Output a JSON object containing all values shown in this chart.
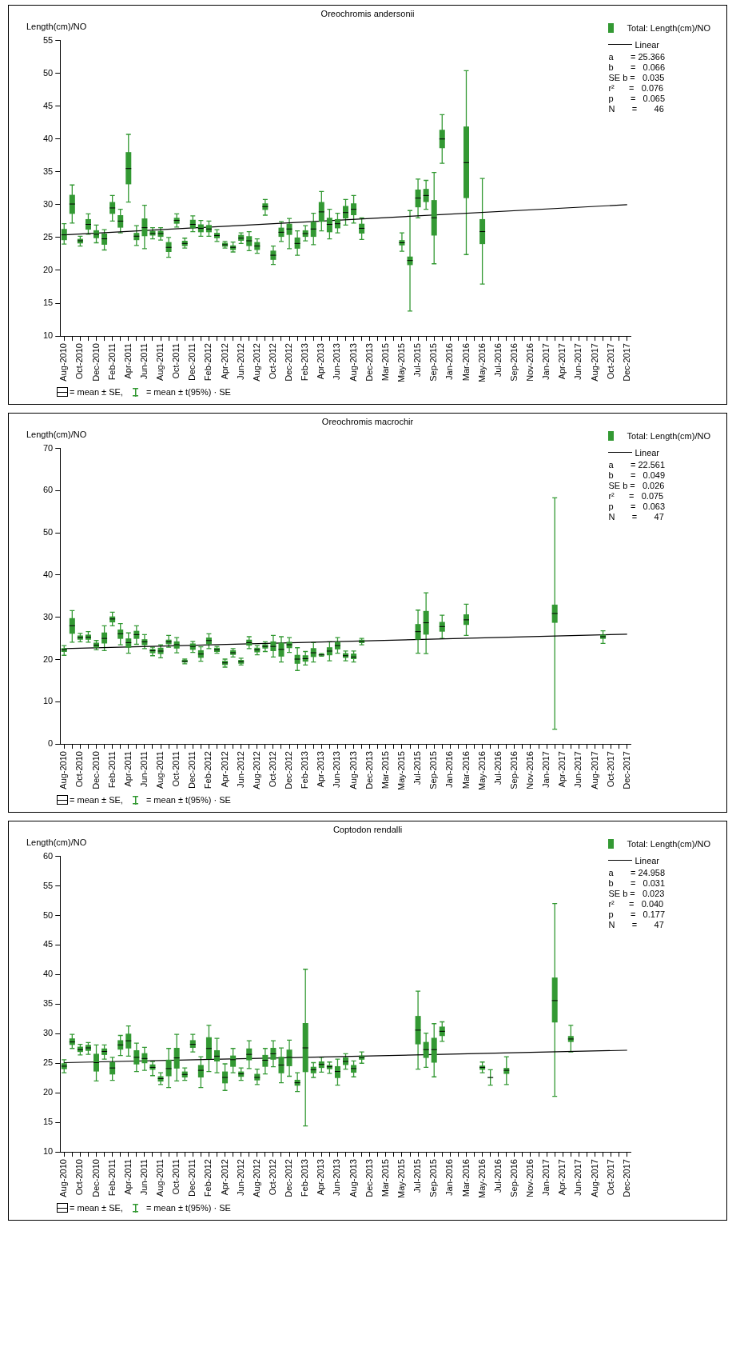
{
  "chart_data": [
    {
      "type": "box",
      "title": "Oreochromis andersonii",
      "ylabel": "Length(cm)/NO",
      "legend": "top right",
      "categories": [
        "Aug-2010",
        null,
        "Oct-2010",
        null,
        "Dec-2010",
        null,
        "Feb-2011",
        null,
        "Apr-2011",
        null,
        "Jun-2011",
        null,
        "Aug-2011",
        null,
        "Oct-2011",
        null,
        "Dec-2011",
        null,
        "Feb-2012",
        null,
        "Apr-2012",
        null,
        "Jun-2012",
        null,
        "Aug-2012",
        null,
        "Oct-2012",
        null,
        "Dec-2012",
        null,
        "Feb-2013",
        null,
        "Apr-2013",
        null,
        "Jun-2013",
        null,
        "Aug-2013",
        null,
        "Dec-2013",
        null,
        "Mar-2015",
        null,
        "May-2015",
        null,
        "Jul-2015",
        null,
        "Sep-2015",
        null,
        "Jan-2016",
        null,
        "Mar-2016",
        null,
        "May-2016",
        null,
        "Jul-2016",
        null,
        "Sep-2016",
        null,
        "Nov-2016",
        null,
        "Jan-2017",
        null,
        "Apr-2017",
        null,
        "Jun-2017",
        null,
        "Aug-2017",
        null,
        "Oct-2017",
        null,
        "Dec-2017"
      ],
      "ylim": [
        10,
        55
      ],
      "yticks": [
        10,
        15,
        20,
        25,
        30,
        35,
        40,
        45,
        50,
        55
      ],
      "series": [
        {
          "type": "box",
          "name": "Total: Length(cm)/NO",
          "color": "#339933",
          "boxes": [
            {
              "low": 24.0,
              "q1": 24.6,
              "median": 25.4,
              "q3": 26.3,
              "high": 27.1
            },
            {
              "low": 27.2,
              "q1": 28.6,
              "median": 30.1,
              "q3": 31.5,
              "high": 33.0
            },
            {
              "low": 23.7,
              "q1": 24.1,
              "median": 24.5,
              "q3": 24.8,
              "high": 25.2
            },
            {
              "low": 25.5,
              "q1": 26.2,
              "median": 27.0,
              "q3": 27.8,
              "high": 28.6
            },
            {
              "low": 24.2,
              "q1": 24.9,
              "median": 25.5,
              "q3": 26.1,
              "high": 26.9
            },
            {
              "low": 23.1,
              "q1": 23.9,
              "median": 24.8,
              "q3": 25.6,
              "high": 26.2
            },
            {
              "low": 27.5,
              "q1": 28.6,
              "median": 29.5,
              "q3": 30.4,
              "high": 31.4
            },
            {
              "low": 25.7,
              "q1": 26.5,
              "median": 27.5,
              "q3": 28.4,
              "high": 29.3
            },
            {
              "low": 30.4,
              "q1": 33.1,
              "median": 35.5,
              "q3": 38.0,
              "high": 40.7
            },
            {
              "low": 23.8,
              "q1": 24.6,
              "median": 25.2,
              "q3": 25.7,
              "high": 26.8
            },
            {
              "low": 23.3,
              "q1": 25.2,
              "median": 26.5,
              "q3": 27.9,
              "high": 29.9
            },
            {
              "low": 24.8,
              "q1": 25.3,
              "median": 25.6,
              "q3": 26.0,
              "high": 26.5
            },
            {
              "low": 24.6,
              "q1": 25.1,
              "median": 25.6,
              "q3": 26.0,
              "high": 26.5
            },
            {
              "low": 22.0,
              "q1": 22.8,
              "median": 23.5,
              "q3": 24.3,
              "high": 25.0
            },
            {
              "low": 26.6,
              "q1": 27.1,
              "median": 27.6,
              "q3": 28.0,
              "high": 28.6
            },
            {
              "low": 23.4,
              "q1": 23.7,
              "median": 24.1,
              "q3": 24.5,
              "high": 24.9
            },
            {
              "low": 25.9,
              "q1": 26.4,
              "median": 27.0,
              "q3": 27.7,
              "high": 28.3
            },
            {
              "low": 25.2,
              "q1": 25.8,
              "median": 26.4,
              "q3": 27.0,
              "high": 27.6
            },
            {
              "low": 25.2,
              "q1": 25.8,
              "median": 26.3,
              "q3": 26.9,
              "high": 27.5
            },
            {
              "low": 24.4,
              "q1": 24.9,
              "median": 25.3,
              "q3": 25.7,
              "high": 26.2
            },
            {
              "low": 23.4,
              "q1": 23.6,
              "median": 23.9,
              "q3": 24.2,
              "high": 24.4
            },
            {
              "low": 22.8,
              "q1": 23.1,
              "median": 23.5,
              "q3": 23.8,
              "high": 24.3
            },
            {
              "low": 24.1,
              "q1": 24.5,
              "median": 24.9,
              "q3": 25.4,
              "high": 25.7
            },
            {
              "low": 23.0,
              "q1": 23.7,
              "median": 24.5,
              "q3": 25.2,
              "high": 25.9
            },
            {
              "low": 22.6,
              "q1": 23.1,
              "median": 23.7,
              "q3": 24.3,
              "high": 24.8
            },
            {
              "low": 28.4,
              "q1": 29.2,
              "median": 29.7,
              "q3": 30.2,
              "high": 30.8
            },
            {
              "low": 20.9,
              "q1": 21.6,
              "median": 22.3,
              "q3": 23.0,
              "high": 23.7
            },
            {
              "low": 24.4,
              "q1": 25.1,
              "median": 25.8,
              "q3": 26.5,
              "high": 27.4
            },
            {
              "low": 23.3,
              "q1": 25.4,
              "median": 26.3,
              "q3": 27.1,
              "high": 27.9
            },
            {
              "low": 22.3,
              "q1": 23.3,
              "median": 24.1,
              "q3": 25.0,
              "high": 26.0
            },
            {
              "low": 24.5,
              "q1": 25.1,
              "median": 25.6,
              "q3": 26.1,
              "high": 26.8
            },
            {
              "low": 23.9,
              "q1": 25.1,
              "median": 26.3,
              "q3": 27.4,
              "high": 28.7
            },
            {
              "low": 26.0,
              "q1": 27.4,
              "median": 28.9,
              "q3": 30.4,
              "high": 32.0
            },
            {
              "low": 24.8,
              "q1": 25.8,
              "median": 27.0,
              "q3": 28.0,
              "high": 29.3
            },
            {
              "low": 25.7,
              "q1": 26.4,
              "median": 27.1,
              "q3": 27.8,
              "high": 28.7
            },
            {
              "low": 26.9,
              "q1": 27.9,
              "median": 28.8,
              "q3": 29.8,
              "high": 30.8
            },
            {
              "low": 27.2,
              "q1": 28.4,
              "median": 29.3,
              "q3": 30.2,
              "high": 31.4
            },
            {
              "low": 24.7,
              "q1": 25.6,
              "median": 26.4,
              "q3": 27.1,
              "high": 28.0
            },
            null,
            null,
            null,
            null,
            {
              "low": 22.9,
              "q1": 23.8,
              "median": 24.2,
              "q3": 24.6,
              "high": 25.7
            },
            {
              "low": 13.8,
              "q1": 20.8,
              "median": 21.5,
              "q3": 22.1,
              "high": 29.1
            },
            {
              "low": 28.0,
              "q1": 29.6,
              "median": 31.0,
              "q3": 32.3,
              "high": 33.9
            },
            {
              "low": 29.3,
              "q1": 30.4,
              "median": 31.4,
              "q3": 32.4,
              "high": 33.7
            },
            {
              "low": 21.0,
              "q1": 25.3,
              "median": 28.0,
              "q3": 30.7,
              "high": 34.9
            },
            {
              "low": 36.3,
              "q1": 38.6,
              "median": 40.0,
              "q3": 41.4,
              "high": 43.7
            },
            null,
            null,
            {
              "low": 22.4,
              "q1": 31.0,
              "median": 36.4,
              "q3": 41.9,
              "high": 50.4
            },
            null,
            {
              "low": 17.9,
              "q1": 24.0,
              "median": 25.9,
              "q3": 27.8,
              "high": 34.0
            },
            null,
            null,
            null,
            null,
            null,
            null,
            null,
            null,
            null,
            null,
            null,
            null,
            null,
            null,
            null,
            null,
            null,
            null
          ]
        },
        {
          "type": "line",
          "name": "Linear",
          "color": "#000000",
          "x": [
            "Aug-2010",
            "Dec-2017"
          ],
          "values": [
            25.4,
            30.0
          ]
        }
      ],
      "annotations": [
        "a       = 25.366",
        "b       =   0.066",
        "SE b =   0.035",
        "r²      =   0.076",
        "p       =   0.065",
        "N       =       46",
        "= mean ± SE,",
        "= mean ± t(95%) · SE"
      ]
    },
    {
      "type": "box",
      "title": "Oreochromis macrochir",
      "ylabel": "Length(cm)/NO",
      "legend": "top right",
      "categories": [
        "Aug-2010",
        null,
        "Oct-2010",
        null,
        "Dec-2010",
        null,
        "Feb-2011",
        null,
        "Apr-2011",
        null,
        "Jun-2011",
        null,
        "Aug-2011",
        null,
        "Oct-2011",
        null,
        "Dec-2011",
        null,
        "Feb-2012",
        null,
        "Apr-2012",
        null,
        "Jun-2012",
        null,
        "Aug-2012",
        null,
        "Oct-2012",
        null,
        "Dec-2012",
        null,
        "Feb-2013",
        null,
        "Apr-2013",
        null,
        "Jun-2013",
        null,
        "Aug-2013",
        null,
        "Dec-2013",
        null,
        "Mar-2015",
        null,
        "May-2015",
        null,
        "Jul-2015",
        null,
        "Sep-2015",
        null,
        "Jan-2016",
        null,
        "Mar-2016",
        null,
        "May-2016",
        null,
        "Jul-2016",
        null,
        "Sep-2016",
        null,
        "Nov-2016",
        null,
        "Jan-2017",
        null,
        "Apr-2017",
        null,
        "Jun-2017",
        null,
        "Aug-2017",
        null,
        "Oct-2017",
        null,
        "Dec-2017"
      ],
      "ylim": [
        0,
        70
      ],
      "yticks": [
        0,
        10,
        20,
        30,
        40,
        50,
        60,
        70
      ],
      "series": [
        {
          "type": "box",
          "name": "Total: Length(cm)/NO",
          "color": "#339933",
          "boxes": [
            {
              "low": 21.0,
              "q1": 21.8,
              "median": 22.3,
              "q3": 22.7,
              "high": 23.3
            },
            {
              "low": 24.1,
              "q1": 26.1,
              "median": 28.0,
              "q3": 29.8,
              "high": 31.6
            },
            {
              "low": 24.2,
              "q1": 24.7,
              "median": 25.2,
              "q3": 25.7,
              "high": 26.2
            },
            {
              "low": 24.1,
              "q1": 24.7,
              "median": 25.3,
              "q3": 25.9,
              "high": 26.6
            },
            {
              "low": 22.3,
              "q1": 22.8,
              "median": 23.4,
              "q3": 24.0,
              "high": 24.5
            },
            {
              "low": 22.1,
              "q1": 23.8,
              "median": 25.0,
              "q3": 26.4,
              "high": 28.0
            },
            {
              "low": 28.0,
              "q1": 28.8,
              "median": 29.6,
              "q3": 30.2,
              "high": 31.2
            },
            {
              "low": 23.5,
              "q1": 24.9,
              "median": 26.1,
              "q3": 27.1,
              "high": 28.5
            },
            {
              "low": 21.5,
              "q1": 22.8,
              "median": 24.0,
              "q3": 25.0,
              "high": 26.3
            },
            {
              "low": 23.6,
              "q1": 24.9,
              "median": 25.9,
              "q3": 26.8,
              "high": 28.0
            },
            {
              "low": 22.6,
              "q1": 23.4,
              "median": 24.2,
              "q3": 24.8,
              "high": 25.9
            },
            {
              "low": 20.9,
              "q1": 21.5,
              "median": 22.1,
              "q3": 22.5,
              "high": 22.9
            },
            {
              "low": 20.4,
              "q1": 21.3,
              "median": 22.0,
              "q3": 22.8,
              "high": 23.5
            },
            {
              "low": 22.9,
              "q1": 23.6,
              "median": 24.2,
              "q3": 24.7,
              "high": 25.7
            },
            {
              "low": 21.6,
              "q1": 22.6,
              "median": 23.5,
              "q3": 24.3,
              "high": 25.2
            },
            {
              "low": 19.0,
              "q1": 19.3,
              "median": 19.6,
              "q3": 19.9,
              "high": 20.1
            },
            {
              "low": 21.7,
              "q1": 22.3,
              "median": 23.1,
              "q3": 23.8,
              "high": 24.3
            },
            {
              "low": 19.6,
              "q1": 20.4,
              "median": 21.3,
              "q3": 22.2,
              "high": 23.0
            },
            {
              "low": 22.6,
              "q1": 23.6,
              "median": 24.5,
              "q3": 25.2,
              "high": 26.1
            },
            {
              "low": 21.5,
              "q1": 21.8,
              "median": 22.3,
              "q3": 22.8,
              "high": 23.1
            },
            {
              "low": 18.2,
              "q1": 18.7,
              "median": 19.2,
              "q3": 19.7,
              "high": 20.1
            },
            {
              "low": 20.6,
              "q1": 21.1,
              "median": 21.6,
              "q3": 22.2,
              "high": 22.6
            },
            {
              "low": 18.7,
              "q1": 19.0,
              "median": 19.5,
              "q3": 19.9,
              "high": 20.3
            },
            {
              "low": 22.6,
              "q1": 23.3,
              "median": 24.0,
              "q3": 24.7,
              "high": 25.4
            },
            {
              "low": 21.1,
              "q1": 21.7,
              "median": 22.3,
              "q3": 22.8,
              "high": 23.3
            },
            {
              "low": 21.9,
              "q1": 22.6,
              "median": 23.1,
              "q3": 23.6,
              "high": 24.2
            },
            {
              "low": 20.6,
              "q1": 22.0,
              "median": 23.1,
              "q3": 24.3,
              "high": 25.7
            },
            {
              "low": 19.4,
              "q1": 20.7,
              "median": 22.4,
              "q3": 24.0,
              "high": 25.4
            },
            {
              "low": 21.7,
              "q1": 22.7,
              "median": 23.5,
              "q3": 24.2,
              "high": 25.2
            },
            {
              "low": 17.4,
              "q1": 19.0,
              "median": 20.1,
              "q3": 21.1,
              "high": 22.8
            },
            {
              "low": 18.7,
              "q1": 19.5,
              "median": 20.2,
              "q3": 21.0,
              "high": 21.9
            },
            {
              "low": 19.4,
              "q1": 20.6,
              "median": 21.6,
              "q3": 22.7,
              "high": 24.0
            },
            {
              "low": 20.8,
              "q1": 20.9,
              "median": 21.1,
              "q3": 21.3,
              "high": 21.4
            },
            {
              "low": 19.7,
              "q1": 21.0,
              "median": 22.0,
              "q3": 22.9,
              "high": 24.2
            },
            {
              "low": 21.5,
              "q1": 22.4,
              "median": 23.3,
              "q3": 24.2,
              "high": 25.2
            },
            {
              "low": 19.7,
              "q1": 20.4,
              "median": 20.9,
              "q3": 21.5,
              "high": 22.0
            },
            {
              "low": 19.4,
              "q1": 20.1,
              "median": 20.6,
              "q3": 21.4,
              "high": 22.0
            },
            {
              "low": 23.5,
              "q1": 23.9,
              "median": 24.3,
              "q3": 24.7,
              "high": 25.0
            },
            null,
            null,
            null,
            null,
            null,
            null,
            {
              "low": 21.5,
              "q1": 24.7,
              "median": 26.6,
              "q3": 28.4,
              "high": 31.7
            },
            {
              "low": 21.4,
              "q1": 25.9,
              "median": 28.7,
              "q3": 31.5,
              "high": 35.8
            },
            null,
            {
              "low": 25.0,
              "q1": 26.6,
              "median": 27.8,
              "q3": 28.9,
              "high": 30.5
            },
            null,
            null,
            {
              "low": 25.7,
              "q1": 28.2,
              "median": 29.4,
              "q3": 30.7,
              "high": 33.1
            },
            null,
            null,
            null,
            null,
            null,
            null,
            null,
            null,
            null,
            null,
            {
              "low": 3.5,
              "q1": 28.7,
              "median": 30.9,
              "q3": 33.0,
              "high": 58.3
            },
            null,
            null,
            null,
            null,
            null,
            {
              "low": 23.8,
              "q1": 24.9,
              "median": 25.4,
              "q3": 25.9,
              "high": 26.8
            },
            null,
            null,
            null
          ]
        },
        {
          "type": "line",
          "name": "Linear",
          "color": "#000000",
          "x": [
            "Aug-2010",
            "Dec-2017"
          ],
          "values": [
            22.6,
            26.0
          ]
        }
      ],
      "annotations": [
        "a       = 22.561",
        "b       =   0.049",
        "SE b =   0.026",
        "r²      =   0.075",
        "p       =   0.063",
        "N       =       47",
        "= mean ± SE,",
        "= mean ± t(95%) · SE"
      ]
    },
    {
      "type": "box",
      "title": "Coptodon rendalli",
      "ylabel": "Length(cm)/NO",
      "legend": "top right",
      "categories": [
        "Aug-2010",
        null,
        "Oct-2010",
        null,
        "Dec-2010",
        null,
        "Feb-2011",
        null,
        "Apr-2011",
        null,
        "Jun-2011",
        null,
        "Aug-2011",
        null,
        "Oct-2011",
        null,
        "Dec-2011",
        null,
        "Feb-2012",
        null,
        "Apr-2012",
        null,
        "Jun-2012",
        null,
        "Aug-2012",
        null,
        "Oct-2012",
        null,
        "Dec-2012",
        null,
        "Feb-2013",
        null,
        "Apr-2013",
        null,
        "Jun-2013",
        null,
        "Aug-2013",
        null,
        "Dec-2013",
        null,
        "Mar-2015",
        null,
        "May-2015",
        null,
        "Jul-2015",
        null,
        "Sep-2015",
        null,
        "Jan-2016",
        null,
        "Mar-2016",
        null,
        "May-2016",
        null,
        "Jul-2016",
        null,
        "Sep-2016",
        null,
        "Nov-2016",
        null,
        "Jan-2017",
        null,
        "Apr-2017",
        null,
        "Jun-2017",
        null,
        "Aug-2017",
        null,
        "Oct-2017",
        null,
        "Dec-2017"
      ],
      "ylim": [
        10,
        60
      ],
      "yticks": [
        10,
        15,
        20,
        25,
        30,
        35,
        40,
        45,
        50,
        55,
        60
      ],
      "series": [
        {
          "type": "box",
          "name": "Total: Length(cm)/NO",
          "color": "#339933",
          "boxes": [
            {
              "low": 23.4,
              "q1": 24.0,
              "median": 24.5,
              "q3": 25.0,
              "high": 25.6
            },
            {
              "low": 27.5,
              "q1": 28.1,
              "median": 28.6,
              "q3": 29.2,
              "high": 29.9
            },
            {
              "low": 26.4,
              "q1": 26.9,
              "median": 27.3,
              "q3": 27.8,
              "high": 28.2
            },
            {
              "low": 26.5,
              "q1": 27.1,
              "median": 27.6,
              "q3": 28.1,
              "high": 28.5
            },
            {
              "low": 22.0,
              "q1": 23.6,
              "median": 25.1,
              "q3": 26.6,
              "high": 28.1
            },
            {
              "low": 25.7,
              "q1": 26.4,
              "median": 27.0,
              "q3": 27.5,
              "high": 28.1
            },
            {
              "low": 22.1,
              "q1": 23.1,
              "median": 24.2,
              "q3": 25.2,
              "high": 26.0
            },
            {
              "low": 26.3,
              "q1": 27.3,
              "median": 28.1,
              "q3": 28.9,
              "high": 29.7
            },
            {
              "low": 26.2,
              "q1": 27.5,
              "median": 28.8,
              "q3": 30.0,
              "high": 31.3
            },
            {
              "low": 23.6,
              "q1": 24.8,
              "median": 26.0,
              "q3": 27.2,
              "high": 28.4
            },
            {
              "low": 23.8,
              "q1": 25.0,
              "median": 25.8,
              "q3": 26.7,
              "high": 27.7
            },
            {
              "low": 22.9,
              "q1": 23.9,
              "median": 24.3,
              "q3": 24.8,
              "high": 25.3
            },
            {
              "low": 21.4,
              "q1": 21.9,
              "median": 22.4,
              "q3": 22.8,
              "high": 23.4
            },
            {
              "low": 20.9,
              "q1": 22.8,
              "median": 24.1,
              "q3": 25.6,
              "high": 27.5
            },
            {
              "low": 22.0,
              "q1": 24.1,
              "median": 25.9,
              "q3": 27.6,
              "high": 29.9
            },
            {
              "low": 22.1,
              "q1": 22.6,
              "median": 23.1,
              "q3": 23.6,
              "high": 24.2
            },
            {
              "low": 26.9,
              "q1": 27.6,
              "median": 28.2,
              "q3": 28.9,
              "high": 29.9
            },
            {
              "low": 20.9,
              "q1": 22.6,
              "median": 23.8,
              "q3": 24.7,
              "high": 26.1
            },
            {
              "low": 23.6,
              "q1": 25.7,
              "median": 27.5,
              "q3": 29.4,
              "high": 31.4
            },
            {
              "low": 23.4,
              "q1": 25.3,
              "median": 26.2,
              "q3": 27.2,
              "high": 29.2
            },
            {
              "low": 20.4,
              "q1": 21.6,
              "median": 22.6,
              "q3": 23.6,
              "high": 24.9
            },
            {
              "low": 23.4,
              "q1": 24.4,
              "median": 25.6,
              "q3": 26.3,
              "high": 27.5
            },
            {
              "low": 22.1,
              "q1": 22.7,
              "median": 23.2,
              "q3": 23.6,
              "high": 24.2
            },
            {
              "low": 24.1,
              "q1": 25.5,
              "median": 26.5,
              "q3": 27.5,
              "high": 28.8
            },
            {
              "low": 21.4,
              "q1": 22.1,
              "median": 22.6,
              "q3": 23.2,
              "high": 24.0
            },
            {
              "low": 23.2,
              "q1": 24.4,
              "median": 25.5,
              "q3": 26.4,
              "high": 27.5
            },
            {
              "low": 24.4,
              "q1": 25.6,
              "median": 26.6,
              "q3": 27.6,
              "high": 28.8
            },
            {
              "low": 21.7,
              "q1": 23.3,
              "median": 24.7,
              "q3": 26.1,
              "high": 27.6
            },
            {
              "low": 22.8,
              "q1": 24.5,
              "median": 26.0,
              "q3": 27.3,
              "high": 28.9
            },
            {
              "low": 20.2,
              "q1": 21.2,
              "median": 21.7,
              "q3": 22.2,
              "high": 23.4
            },
            {
              "low": 14.4,
              "q1": 23.5,
              "median": 27.6,
              "q3": 31.8,
              "high": 40.9
            },
            {
              "low": 22.6,
              "q1": 23.3,
              "median": 23.9,
              "q3": 24.4,
              "high": 25.1
            },
            {
              "low": 23.5,
              "q1": 24.2,
              "median": 24.8,
              "q3": 25.3,
              "high": 26.0
            },
            {
              "low": 23.3,
              "q1": 24.0,
              "median": 24.4,
              "q3": 24.7,
              "high": 25.2
            },
            {
              "low": 21.3,
              "q1": 22.5,
              "median": 23.6,
              "q3": 24.5,
              "high": 25.7
            },
            {
              "low": 24.0,
              "q1": 24.7,
              "median": 25.3,
              "q3": 26.0,
              "high": 26.6
            },
            {
              "low": 22.7,
              "q1": 23.4,
              "median": 24.1,
              "q3": 24.7,
              "high": 25.4
            },
            {
              "low": 25.0,
              "q1": 25.6,
              "median": 26.0,
              "q3": 26.3,
              "high": 26.9
            },
            null,
            null,
            null,
            null,
            null,
            null,
            {
              "low": 24.0,
              "q1": 28.2,
              "median": 30.6,
              "q3": 33.0,
              "high": 37.2
            },
            {
              "low": 24.3,
              "q1": 25.9,
              "median": 27.3,
              "q3": 28.6,
              "high": 30.1
            },
            {
              "low": 22.7,
              "q1": 25.1,
              "median": 27.3,
              "q3": 29.3,
              "high": 31.7
            },
            {
              "low": 28.7,
              "q1": 29.6,
              "median": 30.4,
              "q3": 31.2,
              "high": 32.0
            },
            null,
            null,
            null,
            null,
            {
              "low": 23.4,
              "q1": 23.9,
              "median": 24.3,
              "q3": 24.6,
              "high": 25.2
            },
            {
              "low": 21.3,
              "q1": 22.5,
              "median": 22.6,
              "q3": 22.6,
              "high": 23.9
            },
            null,
            {
              "low": 21.4,
              "q1": 23.2,
              "median": 23.8,
              "q3": 24.2,
              "high": 26.1
            },
            null,
            null,
            null,
            null,
            null,
            {
              "low": 19.4,
              "q1": 31.9,
              "median": 35.6,
              "q3": 39.5,
              "high": 52.0
            },
            null,
            {
              "low": 26.9,
              "q1": 28.6,
              "median": 29.1,
              "q3": 29.6,
              "high": 31.4
            },
            null,
            null,
            null,
            null,
            null,
            null,
            null
          ]
        },
        {
          "type": "line",
          "name": "Linear",
          "color": "#000000",
          "x": [
            "Aug-2010",
            "Dec-2017"
          ],
          "values": [
            25.1,
            27.2
          ]
        }
      ],
      "annotations": [
        "a       = 24.958",
        "b       =   0.031",
        "SE b =   0.023",
        "r²      =   0.040",
        "p       =   0.177",
        "N       =       47",
        "= mean ± SE,",
        "= mean ± t(95%) · SE"
      ]
    }
  ]
}
